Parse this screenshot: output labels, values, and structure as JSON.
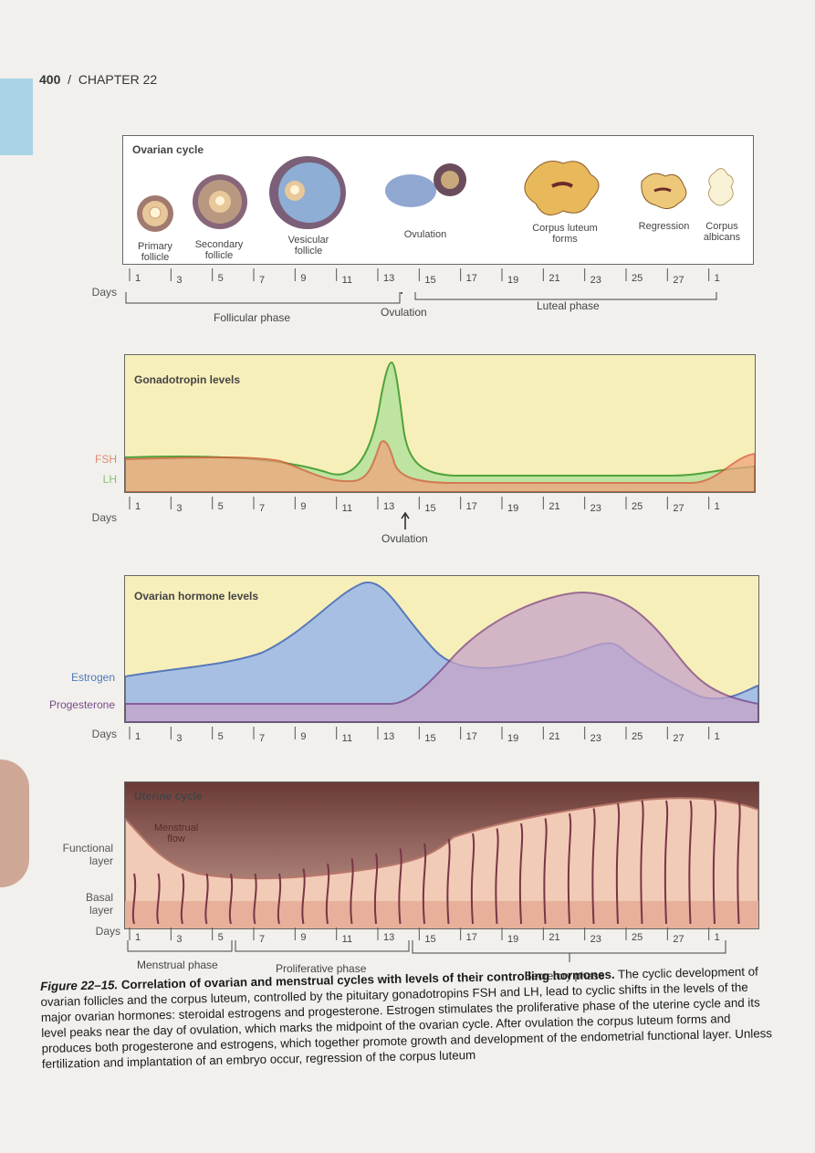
{
  "header": {
    "page_number": "400",
    "separator": "/",
    "chapter": "CHAPTER 22"
  },
  "days": [
    "1",
    "3",
    "5",
    "7",
    "9",
    "11",
    "13",
    "15",
    "17",
    "19",
    "21",
    "23",
    "25",
    "27",
    "1"
  ],
  "days_label": "Days",
  "ovarian": {
    "title": "Ovarian cycle",
    "stages": [
      "Primary follicle",
      "Secondary follicle",
      "Vesicular follicle",
      "Ovulation",
      "Corpus luteum forms",
      "Regression",
      "Corpus albicans"
    ],
    "ovulation_label": "Ovulation",
    "phases": [
      "Follicular phase",
      "Luteal phase"
    ]
  },
  "gonadotropin": {
    "title": "Gonadotropin levels",
    "fsh_label": "FSH",
    "lh_label": "LH",
    "ovulation_label": "Ovulation",
    "colors": {
      "fsh": "#d9583a",
      "lh": "#4ea33a",
      "fsh_fill": "#f0a57c",
      "lh_fill": "#bfe3a0",
      "bg": "#f7efba"
    }
  },
  "hormone": {
    "title": "Ovarian hormone levels",
    "estrogen_label": "Estrogen",
    "progesterone_label": "Progesterone",
    "colors": {
      "estrogen": "#5a79b8",
      "progesterone": "#7a3f84",
      "estrogen_fill": "#a6bfe3",
      "progesterone_fill": "#c7a3c9",
      "bg": "#f7efba"
    }
  },
  "uterine": {
    "title": "Uterine cycle",
    "menstrual_flow": "Menstrual flow",
    "functional_layer": "Functional layer",
    "basal_layer": "Basal layer",
    "phases": [
      "Menstrual phase",
      "Proliferative phase",
      "Secretory phase"
    ]
  },
  "caption": {
    "figure": "Figure 22–15.",
    "lead": "Correlation of ovarian and menstrual cycles with levels of their controlling hormones.",
    "body": "The cyclic development of ovarian follicles and the corpus luteum, controlled by the pituitary gonadotropins FSH and LH, lead to cyclic shifts in the levels of the major ovarian hormones: steroidal estrogens and progesterone. Estrogen stimulates the proliferative phase of the uterine cycle and its level peaks near the day of ovulation, which marks the midpoint of the ovarian cycle. After ovulation the corpus luteum forms and produces both progesterone and estrogens, which together promote growth and development of the endometrial functional layer. Unless fertilization and implantation of an embryo occur, regression of the corpus luteum"
  }
}
